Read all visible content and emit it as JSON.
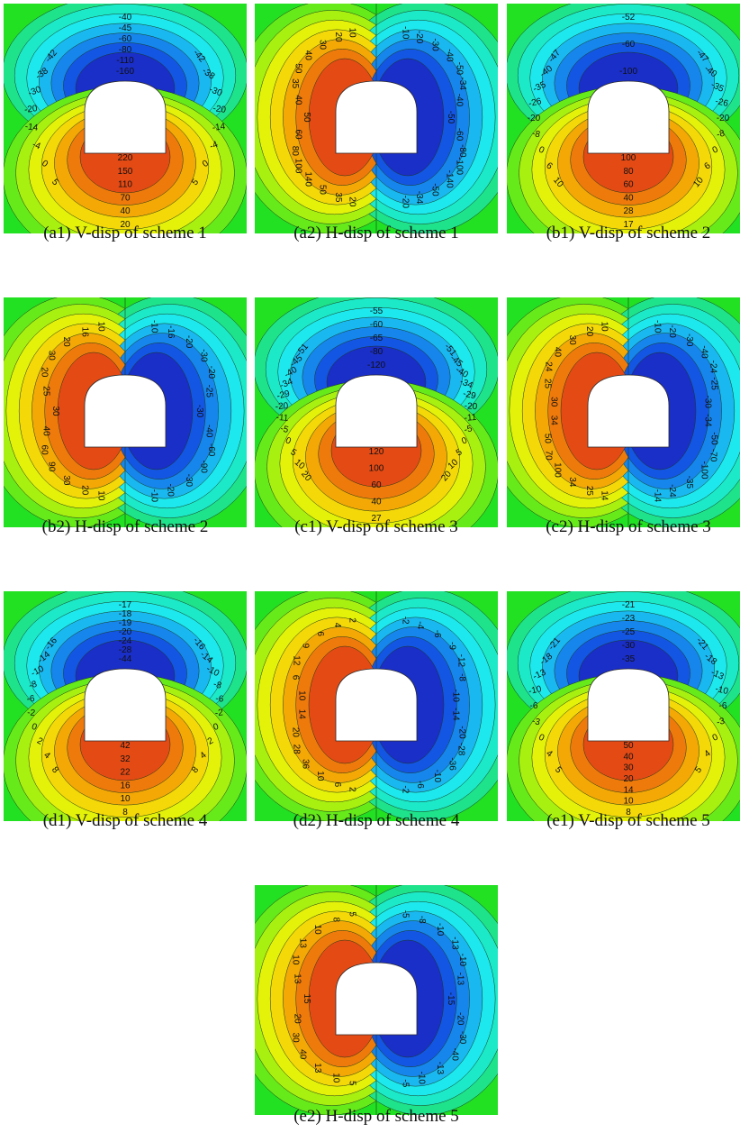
{
  "panels": [
    {
      "id": "a1",
      "caption": "(a1) V-disp of scheme 1",
      "mode": "V",
      "labels_above": [
        "-40",
        "-45",
        "-60",
        "-80",
        "-110",
        "-160"
      ],
      "labels_below": [
        "220",
        "150",
        "110",
        "70",
        "40",
        "20"
      ],
      "labels_left": [
        "-42",
        "-38",
        "-30",
        "-20",
        "-14",
        "-4",
        "0",
        "5"
      ],
      "labels_right": [
        "-42",
        "-38",
        "-30",
        "-20",
        "-14",
        "-4",
        "0",
        "5"
      ]
    },
    {
      "id": "a2",
      "caption": "(a2) H-disp of scheme 1",
      "mode": "H",
      "labels_left": [
        "10",
        "20",
        "30",
        "40",
        "50",
        "35",
        "40",
        "50",
        "60",
        "80",
        "100",
        "140",
        "50",
        "35",
        "20"
      ],
      "labels_right": [
        "-10",
        "-20",
        "-30",
        "-40",
        "-50",
        "-34",
        "-40",
        "-50",
        "-60",
        "-80",
        "-100",
        "-140",
        "-50",
        "-34",
        "-20"
      ]
    },
    {
      "id": "b1",
      "caption": "(b1) V-disp of scheme 2",
      "mode": "V",
      "labels_above": [
        "-52",
        "-60",
        "-100"
      ],
      "labels_below": [
        "100",
        "80",
        "60",
        "40",
        "28",
        "17"
      ],
      "labels_left": [
        "-47",
        "-40",
        "-35",
        "-26",
        "-20",
        "-8",
        "0",
        "6",
        "10"
      ],
      "labels_right": [
        "-47",
        "-40",
        "-35",
        "-26",
        "-20",
        "-8",
        "0",
        "6",
        "10"
      ]
    },
    {
      "id": "b2",
      "caption": "(b2) H-disp of scheme 2",
      "mode": "H",
      "labels_left": [
        "10",
        "16",
        "20",
        "30",
        "20",
        "25",
        "30",
        "40",
        "60",
        "90",
        "30",
        "20",
        "10"
      ],
      "labels_right": [
        "-10",
        "-16",
        "-20",
        "-30",
        "-20",
        "-25",
        "-30",
        "-40",
        "-60",
        "-90",
        "-30",
        "-20",
        "-10"
      ]
    },
    {
      "id": "c1",
      "caption": "(c1) V-disp of scheme 3",
      "mode": "V",
      "labels_above": [
        "-55",
        "-60",
        "-65",
        "-80",
        "-120"
      ],
      "labels_below": [
        "120",
        "100",
        "60",
        "40",
        "27"
      ],
      "labels_left": [
        "-51",
        "-45",
        "-40",
        "-34",
        "-29",
        "-20",
        "-11",
        "-5",
        "0",
        "5",
        "10",
        "20"
      ],
      "labels_right": [
        "-51",
        "-45",
        "-40",
        "-34",
        "-29",
        "-20",
        "-11",
        "-5",
        "0",
        "5",
        "10",
        "20"
      ]
    },
    {
      "id": "c2",
      "caption": "(c2) H-disp of scheme 3",
      "mode": "H",
      "labels_left": [
        "10",
        "20",
        "30",
        "40",
        "24",
        "25",
        "30",
        "34",
        "50",
        "70",
        "100",
        "34",
        "25",
        "14"
      ],
      "labels_right": [
        "-10",
        "-20",
        "-30",
        "-40",
        "-24",
        "-25",
        "-30",
        "-34",
        "-50",
        "-70",
        "-100",
        "-35",
        "-24",
        "-14"
      ]
    },
    {
      "id": "d1",
      "caption": "(d1) V-disp of scheme 4",
      "mode": "V",
      "labels_above": [
        "-17",
        "-18",
        "-19",
        "-20",
        "-24",
        "-28",
        "-44"
      ],
      "labels_below": [
        "42",
        "32",
        "22",
        "16",
        "10",
        "8"
      ],
      "labels_left": [
        "-16",
        "-14",
        "-10",
        "-8",
        "-6",
        "-2",
        "0",
        "2",
        "4",
        "8"
      ],
      "labels_right": [
        "-16",
        "-14",
        "-10",
        "-8",
        "-6",
        "-2",
        "0",
        "2",
        "4",
        "8"
      ]
    },
    {
      "id": "d2",
      "caption": "(d2) H-disp of scheme 4",
      "mode": "H",
      "labels_left": [
        "2",
        "4",
        "6",
        "9",
        "12",
        "6",
        "10",
        "14",
        "20",
        "28",
        "36",
        "10",
        "6",
        "2"
      ],
      "labels_right": [
        "-2",
        "-4",
        "-6",
        "-9",
        "-12",
        "-8",
        "-10",
        "-14",
        "-20",
        "-28",
        "-36",
        "-10",
        "-6",
        "-2"
      ]
    },
    {
      "id": "e1",
      "caption": "(e1) V-disp of scheme 5",
      "mode": "V",
      "labels_above": [
        "-21",
        "-23",
        "-25",
        "-30",
        "-35"
      ],
      "labels_below": [
        "50",
        "40",
        "30",
        "20",
        "14",
        "10",
        "8"
      ],
      "labels_left": [
        "-21",
        "-18",
        "-13",
        "-10",
        "-6",
        "-3",
        "0",
        "4",
        "5"
      ],
      "labels_right": [
        "-21",
        "-18",
        "-13",
        "-10",
        "-6",
        "-3",
        "0",
        "4",
        "5"
      ]
    },
    {
      "id": "e2",
      "caption": "(e2) H-disp of scheme 5",
      "mode": "H",
      "labels_left": [
        "5",
        "8",
        "10",
        "13",
        "10",
        "13",
        "15",
        "20",
        "30",
        "40",
        "13",
        "10",
        "5"
      ],
      "labels_right": [
        "-5",
        "-8",
        "-10",
        "-13",
        "-10",
        "-13",
        "-15",
        "-20",
        "-30",
        "-40",
        "-13",
        "-10",
        "-5"
      ]
    }
  ],
  "colors": {
    "background": "#22e022",
    "level_pos": [
      "#22e022",
      "#66ea1a",
      "#a8f010",
      "#e4f20a",
      "#f4d808",
      "#f3a806",
      "#ef7a0c",
      "#e44a14"
    ],
    "level_neg": [
      "#22e022",
      "#1ee38a",
      "#1ce9c8",
      "#1ce8ee",
      "#1ab8f0",
      "#1686ec",
      "#1456e4",
      "#1a2ec8"
    ],
    "opening": "#ffffff",
    "contour_line": "#1b3a1b"
  }
}
